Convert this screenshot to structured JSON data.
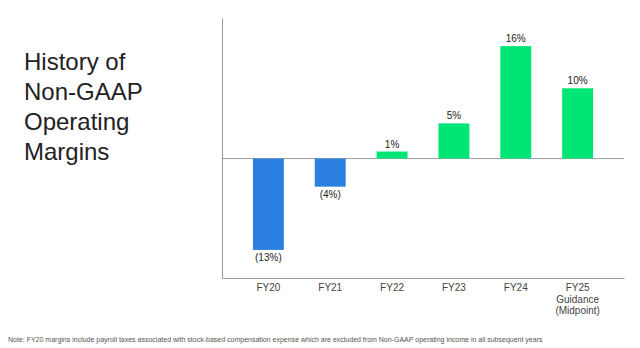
{
  "chart_data": {
    "type": "bar",
    "title": "History of\nNon-GAAP\nOperating\nMargins",
    "categories": [
      "FY20",
      "FY21",
      "FY22",
      "FY23",
      "FY24",
      "FY25\nGuidance\n(Midpoint)"
    ],
    "values": [
      -13,
      -4,
      1,
      5,
      16,
      10
    ],
    "value_labels": [
      "(13%)",
      "(4%)",
      "1%",
      "5%",
      "16%",
      "10%"
    ],
    "colors": [
      "#2B7FE0",
      "#2B7FE0",
      "#00E676",
      "#00E676",
      "#00E676",
      "#00E676"
    ],
    "data_labels": true,
    "ylim": [
      -17,
      20
    ],
    "tick_labels": "x",
    "grid": false,
    "annotations": [
      "Note: FY20 margins include payroll taxes associated with stock-based compensation expense which are excluded from Non-GAAP operating income in all subsequent years"
    ]
  }
}
